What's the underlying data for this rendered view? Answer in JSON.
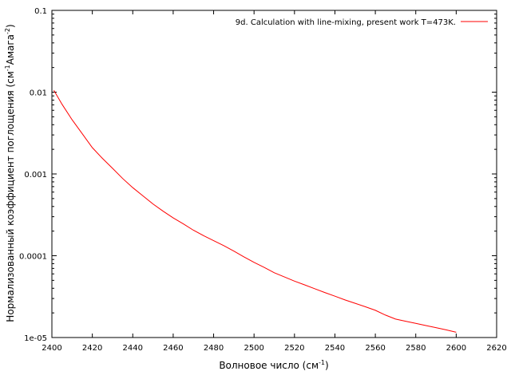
{
  "chart_data": {
    "type": "line",
    "title": "",
    "xlabel": {
      "text": "Волновое число (см",
      "sup": "-1",
      "tail": ")"
    },
    "ylabel": {
      "text1": "Нормализованный коэффициент поглощения (см",
      "sup1": "-1",
      "text2": "Амага",
      "sup2": "-2",
      "tail": ")"
    },
    "x_scale": "linear",
    "y_scale": "log",
    "xlim": [
      2400,
      2620
    ],
    "ylim": [
      1e-05,
      0.1
    ],
    "x_ticks": [
      2400,
      2420,
      2440,
      2460,
      2480,
      2500,
      2520,
      2540,
      2560,
      2580,
      2600,
      2620
    ],
    "x_tick_labels": [
      "2400",
      "2420",
      "2440",
      "2460",
      "2480",
      "2500",
      "2520",
      "2540",
      "2560",
      "2580",
      "2600",
      "2620"
    ],
    "y_ticks": [
      1e-05,
      0.0001,
      0.001,
      0.01,
      0.1
    ],
    "y_tick_labels": [
      "1e-05",
      "0.0001",
      "0.001",
      "0.01",
      "0.1"
    ],
    "grid": false,
    "legend_position": "top-right",
    "series": [
      {
        "name": "9d. Calculation with line-mixing, present work T=473K.",
        "color": "#ff0000",
        "x": [
          2401,
          2405,
          2410,
          2415,
          2420,
          2425,
          2430,
          2435,
          2440,
          2445,
          2450,
          2455,
          2460,
          2465,
          2470,
          2475,
          2480,
          2485,
          2490,
          2495,
          2500,
          2505,
          2510,
          2515,
          2520,
          2525,
          2530,
          2535,
          2540,
          2545,
          2550,
          2555,
          2560,
          2565,
          2570,
          2575,
          2580,
          2585,
          2590,
          2595,
          2600
        ],
        "y": [
          0.0105,
          0.0071,
          0.0046,
          0.0031,
          0.0021,
          0.00155,
          0.00117,
          0.00088,
          0.00068,
          0.00054,
          0.00043,
          0.00035,
          0.00029,
          0.000245,
          0.000205,
          0.000176,
          0.000153,
          0.000133,
          0.000114,
          9.7e-05,
          8.3e-05,
          7.2e-05,
          6.2e-05,
          5.5e-05,
          4.9e-05,
          4.4e-05,
          3.95e-05,
          3.55e-05,
          3.2e-05,
          2.88e-05,
          2.62e-05,
          2.38e-05,
          2.15e-05,
          1.88e-05,
          1.68e-05,
          1.58e-05,
          1.49e-05,
          1.4e-05,
          1.32e-05,
          1.24e-05,
          1.16e-05
        ]
      }
    ]
  }
}
